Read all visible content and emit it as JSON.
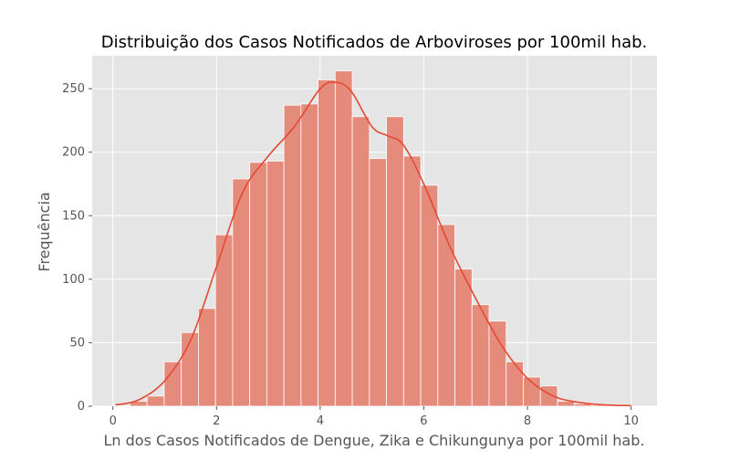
{
  "chart_data": {
    "type": "bar",
    "title": "Distribuição dos Casos Notificados de Arboviroses por 100mil hab.",
    "xlabel": "Ln dos Casos Notificados de Dengue, Zika e Chikungunya por 100mil hab.",
    "ylabel": "Frequência",
    "xlim": [
      -0.4,
      10.5
    ],
    "ylim": [
      0,
      276
    ],
    "xticks": [
      0,
      2,
      4,
      6,
      8,
      10
    ],
    "xtick_labels": [
      "0",
      "2",
      "4",
      "6",
      "8",
      "10"
    ],
    "yticks": [
      0,
      50,
      100,
      150,
      200,
      250
    ],
    "ytick_labels": [
      "0",
      "50",
      "100",
      "150",
      "200",
      "250"
    ],
    "grid": true,
    "style": "ggplot",
    "colors": {
      "plot_background": "#e5e5e5",
      "grid": "#ffffff",
      "bar_fill": "#e48b7b",
      "bar_edge": "#ffffff",
      "kde_line": "#e24a33"
    },
    "bin_edges": [
      0.0,
      0.33,
      0.66,
      0.99,
      1.32,
      1.65,
      1.98,
      2.31,
      2.64,
      2.97,
      3.3,
      3.63,
      3.96,
      4.29,
      4.62,
      4.95,
      5.28,
      5.61,
      5.94,
      6.27,
      6.6,
      6.93,
      7.26,
      7.59,
      7.92,
      8.25,
      8.58,
      8.91,
      9.24,
      9.57,
      9.9
    ],
    "values": [
      0,
      4,
      8,
      35,
      58,
      77,
      135,
      179,
      192,
      193,
      237,
      238,
      257,
      264,
      228,
      195,
      228,
      197,
      174,
      143,
      108,
      80,
      67,
      35,
      23,
      16,
      4,
      2,
      1,
      1
    ],
    "kde": {
      "x": [
        0.05,
        0.5,
        1.0,
        1.5,
        2.0,
        2.5,
        3.0,
        3.5,
        4.0,
        4.3,
        4.6,
        5.0,
        5.3,
        5.6,
        6.0,
        6.5,
        7.0,
        7.5,
        8.0,
        8.5,
        9.0,
        9.5,
        10.0
      ],
      "y": [
        1,
        5,
        20,
        52,
        110,
        168,
        197,
        220,
        250,
        255,
        248,
        220,
        213,
        206,
        175,
        126,
        85,
        48,
        22,
        8,
        3,
        1,
        0.5
      ]
    }
  }
}
